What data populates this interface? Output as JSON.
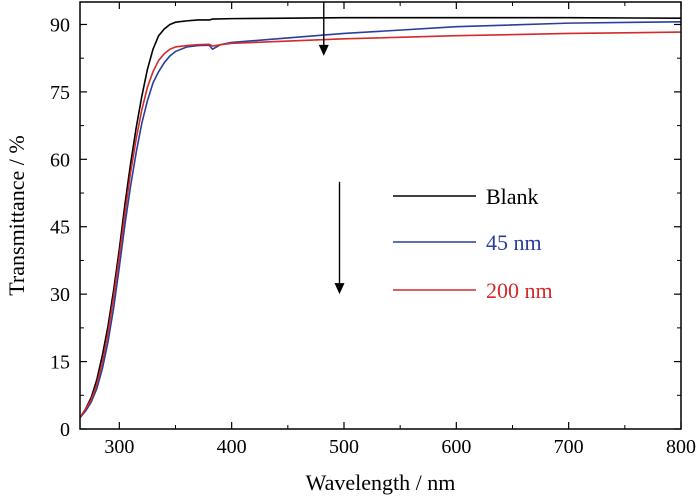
{
  "chart_data": {
    "type": "line",
    "xlabel": "Wavelength / nm",
    "ylabel": "Transmittance / %",
    "xlim": [
      265,
      800
    ],
    "ylim": [
      0,
      95
    ],
    "xticks": [
      300,
      400,
      500,
      600,
      700,
      800
    ],
    "yticks": [
      0,
      15,
      30,
      45,
      60,
      75,
      90
    ],
    "grid": false,
    "legend_position": "center-right",
    "series": [
      {
        "name": "Blank",
        "color": "#000000",
        "x": [
          265,
          270,
          275,
          280,
          285,
          290,
          295,
          300,
          305,
          310,
          315,
          320,
          325,
          330,
          335,
          340,
          345,
          350,
          360,
          370,
          380,
          383,
          400,
          450,
          500,
          600,
          700,
          800
        ],
        "y": [
          2.5,
          4.5,
          7,
          11,
          16.5,
          23,
          31,
          40,
          50,
          59,
          67,
          74,
          80,
          84.5,
          87.5,
          89,
          90,
          90.5,
          90.8,
          91,
          91,
          91.2,
          91.3,
          91.4,
          91.5,
          91.5,
          91.5,
          91.4
        ]
      },
      {
        "name": "45 nm",
        "color": "#2a3e9e",
        "x": [
          265,
          270,
          275,
          280,
          285,
          290,
          295,
          300,
          305,
          310,
          315,
          320,
          325,
          330,
          335,
          340,
          345,
          350,
          360,
          370,
          380,
          383,
          390,
          400,
          450,
          500,
          600,
          700,
          800
        ],
        "y": [
          2.5,
          4,
          6,
          9,
          13.5,
          19.5,
          27,
          36,
          45.5,
          54,
          61.5,
          68,
          73,
          77,
          79.5,
          81.5,
          83,
          84,
          85,
          85.3,
          85.4,
          84.5,
          85.5,
          86,
          87,
          88,
          89.5,
          90.3,
          90.6
        ]
      },
      {
        "name": "200 nm",
        "color": "#d42a2a",
        "x": [
          265,
          270,
          275,
          280,
          285,
          290,
          295,
          300,
          305,
          310,
          315,
          320,
          325,
          330,
          335,
          340,
          345,
          350,
          360,
          370,
          380,
          383,
          390,
          400,
          450,
          500,
          600,
          700,
          800
        ],
        "y": [
          2.5,
          4.5,
          6.5,
          10,
          15,
          21.5,
          29.5,
          38.5,
          48,
          57,
          64.5,
          71,
          76,
          79.5,
          82,
          83.5,
          84.5,
          85,
          85.3,
          85.5,
          85.6,
          85.2,
          85.5,
          85.8,
          86.3,
          86.8,
          87.5,
          88,
          88.3
        ]
      }
    ],
    "annotations": [
      {
        "type": "arrow",
        "direction": "down",
        "x": 482,
        "y_from": 95,
        "y_to": 83
      },
      {
        "type": "arrow",
        "direction": "down",
        "x": 496,
        "y_from": 55,
        "y_to": 30
      }
    ]
  }
}
